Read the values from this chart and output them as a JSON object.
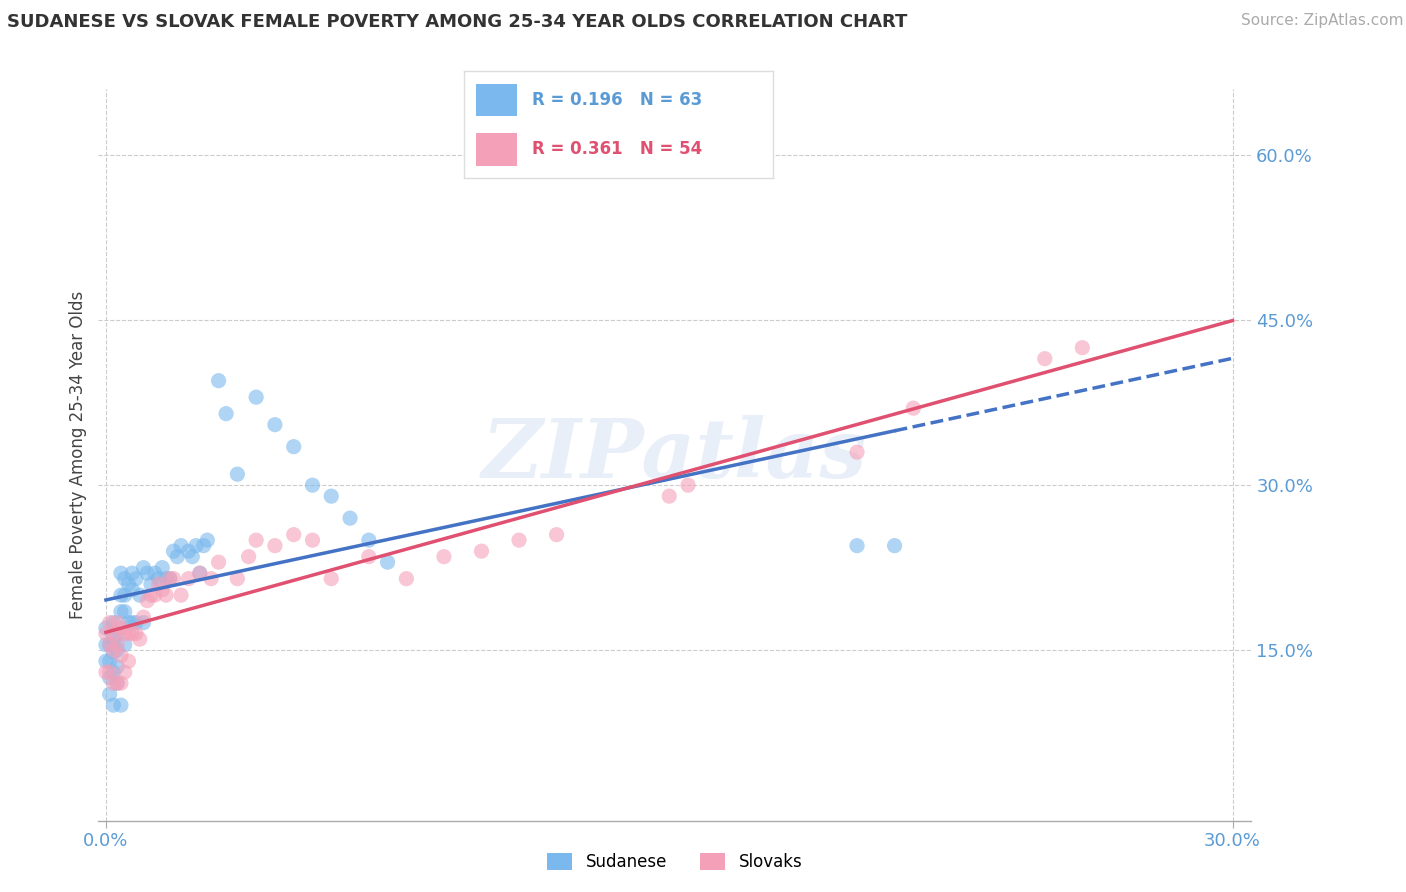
{
  "title": "SUDANESE VS SLOVAK FEMALE POVERTY AMONG 25-34 YEAR OLDS CORRELATION CHART",
  "source": "Source: ZipAtlas.com",
  "ylabel": "Female Poverty Among 25-34 Year Olds",
  "xlim": [
    -0.002,
    0.305
  ],
  "ylim": [
    -0.005,
    0.66
  ],
  "xticks": [
    0.0,
    0.3
  ],
  "xtick_labels": [
    "0.0%",
    "30.0%"
  ],
  "ytick_positions": [
    0.15,
    0.3,
    0.45,
    0.6
  ],
  "ytick_labels": [
    "15.0%",
    "30.0%",
    "45.0%",
    "60.0%"
  ],
  "grid_color": "#cccccc",
  "background_color": "#ffffff",
  "color1": "#7ab8ed",
  "color2": "#f4a0b8",
  "trendline1_color": "#4472c4",
  "trendline2_color": "#e05070",
  "label1": "Sudanese",
  "label2": "Slovaks",
  "sudanese_x": [
    0.0,
    0.0,
    0.0,
    0.001,
    0.001,
    0.001,
    0.001,
    0.002,
    0.002,
    0.002,
    0.002,
    0.002,
    0.003,
    0.003,
    0.003,
    0.003,
    0.004,
    0.004,
    0.004,
    0.004,
    0.005,
    0.005,
    0.005,
    0.005,
    0.006,
    0.006,
    0.007,
    0.007,
    0.007,
    0.008,
    0.008,
    0.009,
    0.01,
    0.01,
    0.011,
    0.012,
    0.013,
    0.014,
    0.015,
    0.016,
    0.017,
    0.018,
    0.019,
    0.02,
    0.022,
    0.023,
    0.024,
    0.025,
    0.026,
    0.027,
    0.03,
    0.032,
    0.035,
    0.04,
    0.045,
    0.05,
    0.055,
    0.06,
    0.065,
    0.07,
    0.075,
    0.2,
    0.21
  ],
  "sudanese_y": [
    0.17,
    0.155,
    0.14,
    0.155,
    0.14,
    0.125,
    0.11,
    0.175,
    0.16,
    0.148,
    0.13,
    0.1,
    0.165,
    0.15,
    0.135,
    0.12,
    0.22,
    0.2,
    0.185,
    0.1,
    0.215,
    0.2,
    0.185,
    0.155,
    0.21,
    0.175,
    0.22,
    0.205,
    0.175,
    0.215,
    0.175,
    0.2,
    0.225,
    0.175,
    0.22,
    0.21,
    0.22,
    0.215,
    0.225,
    0.215,
    0.215,
    0.24,
    0.235,
    0.245,
    0.24,
    0.235,
    0.245,
    0.22,
    0.245,
    0.25,
    0.395,
    0.365,
    0.31,
    0.38,
    0.355,
    0.335,
    0.3,
    0.29,
    0.27,
    0.25,
    0.23,
    0.245,
    0.245
  ],
  "slovaks_x": [
    0.0,
    0.0,
    0.001,
    0.001,
    0.001,
    0.002,
    0.002,
    0.002,
    0.003,
    0.003,
    0.003,
    0.004,
    0.004,
    0.004,
    0.005,
    0.005,
    0.006,
    0.006,
    0.007,
    0.008,
    0.009,
    0.01,
    0.011,
    0.012,
    0.013,
    0.014,
    0.015,
    0.016,
    0.017,
    0.018,
    0.02,
    0.022,
    0.025,
    0.028,
    0.03,
    0.035,
    0.038,
    0.04,
    0.045,
    0.05,
    0.055,
    0.06,
    0.07,
    0.08,
    0.09,
    0.1,
    0.11,
    0.12,
    0.15,
    0.155,
    0.2,
    0.215,
    0.25,
    0.26
  ],
  "slovaks_y": [
    0.165,
    0.13,
    0.175,
    0.155,
    0.13,
    0.165,
    0.15,
    0.12,
    0.175,
    0.155,
    0.12,
    0.17,
    0.145,
    0.12,
    0.165,
    0.13,
    0.165,
    0.14,
    0.165,
    0.165,
    0.16,
    0.18,
    0.195,
    0.2,
    0.2,
    0.21,
    0.205,
    0.2,
    0.215,
    0.215,
    0.2,
    0.215,
    0.22,
    0.215,
    0.23,
    0.215,
    0.235,
    0.25,
    0.245,
    0.255,
    0.25,
    0.215,
    0.235,
    0.215,
    0.235,
    0.24,
    0.25,
    0.255,
    0.29,
    0.3,
    0.33,
    0.37,
    0.415,
    0.425
  ]
}
